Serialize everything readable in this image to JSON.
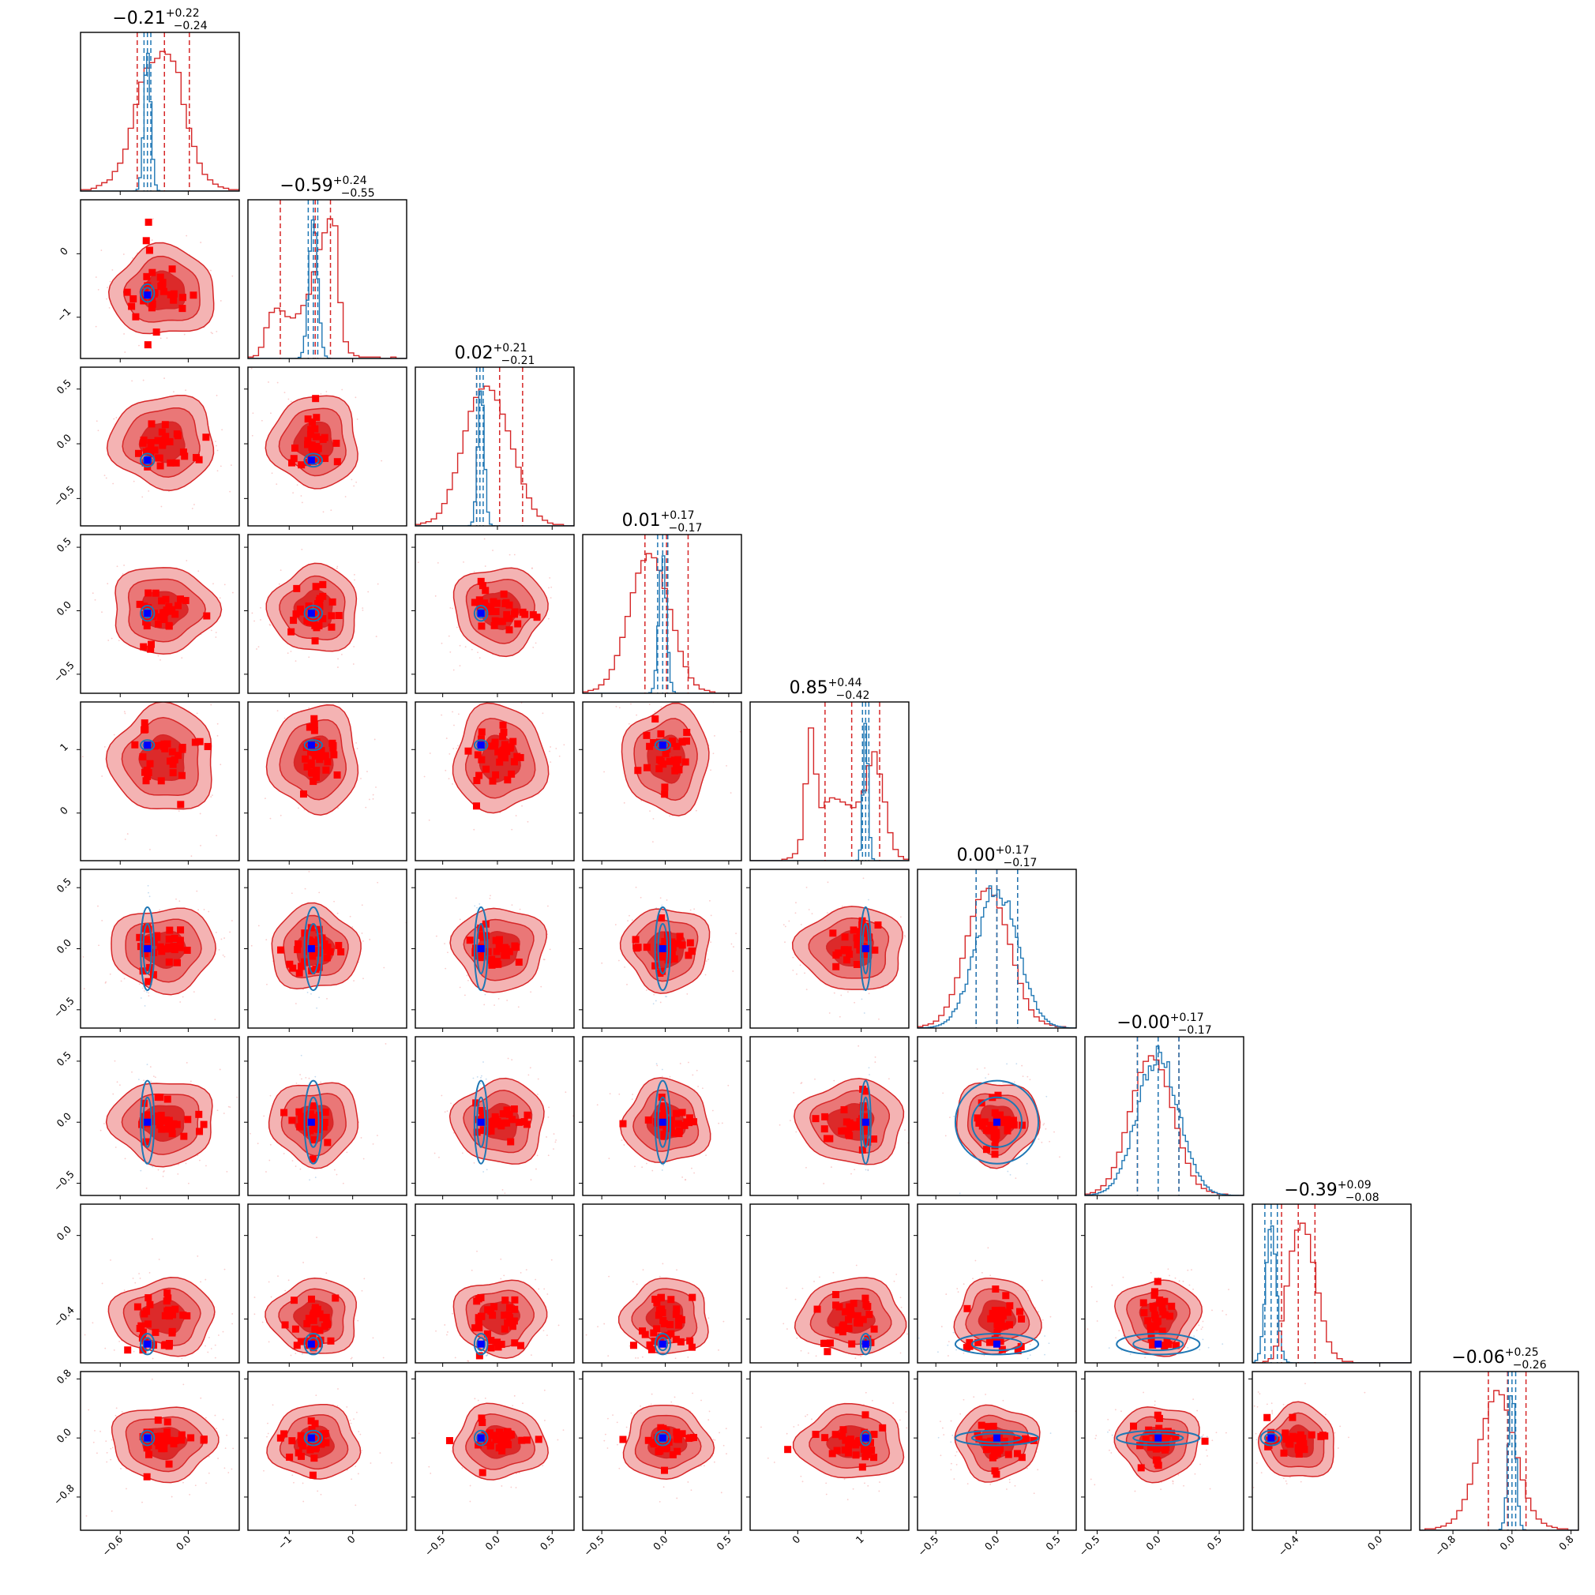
{
  "chart_data": {
    "type": "corner",
    "grid": false,
    "n_params": 9,
    "colors": {
      "posterior_a": "#d62728",
      "posterior_a_point": "#ff0000",
      "posterior_b": "#1f77b4",
      "true_point": "#0000ff"
    },
    "titles": [
      {
        "median": "−0.21",
        "plus": "+0.22",
        "minus": "−0.24"
      },
      {
        "median": "−0.59",
        "plus": "+0.24",
        "minus": "−0.55"
      },
      {
        "median": "0.02",
        "plus": "+0.21",
        "minus": "−0.21"
      },
      {
        "median": "0.01",
        "plus": "+0.17",
        "minus": "−0.17"
      },
      {
        "median": "0.85",
        "plus": "+0.44",
        "minus": "−0.42"
      },
      {
        "median": "0.00",
        "plus": "+0.17",
        "minus": "−0.17"
      },
      {
        "median": "−0.00",
        "plus": "+0.17",
        "minus": "−0.17"
      },
      {
        "median": "−0.39",
        "plus": "+0.09",
        "minus": "−0.08"
      },
      {
        "median": "−0.06",
        "plus": "+0.25",
        "minus": "−0.26"
      }
    ],
    "params": [
      {
        "range": [
          -0.95,
          0.45
        ],
        "ticks": [
          -0.6,
          0.0
        ],
        "tick_labels": [
          "−0.6",
          "0.0"
        ],
        "truth": -0.36,
        "a_mean": -0.22,
        "a_std": 0.23,
        "b_mean": -0.36,
        "b_std": 0.03,
        "a_quantiles": [
          -0.45,
          -0.21,
          0.01
        ],
        "b_quantiles": [
          -0.39,
          -0.36,
          -0.33
        ],
        "a_hist": [
          0.01,
          0.01,
          0.02,
          0.04,
          0.06,
          0.08,
          0.14,
          0.2,
          0.3,
          0.45,
          0.62,
          0.78,
          0.88,
          0.92,
          0.95,
          1.0,
          0.98,
          0.93,
          0.85,
          0.62,
          0.45,
          0.32,
          0.2,
          0.12,
          0.08,
          0.05,
          0.03,
          0.02,
          0.01,
          0.01
        ]
      },
      {
        "range": [
          -1.65,
          0.85
        ],
        "ticks": [
          -1,
          0
        ],
        "tick_labels": [
          "−1",
          "0"
        ],
        "truth": -0.65,
        "a_mean": -0.6,
        "a_std": 0.35,
        "b_mean": -0.62,
        "b_std": 0.07,
        "a_quantiles": [
          -1.14,
          -0.59,
          -0.35
        ],
        "b_quantiles": [
          -0.7,
          -0.62,
          -0.55
        ],
        "a_hist": [
          0.01,
          0.02,
          0.08,
          0.22,
          0.33,
          0.36,
          0.34,
          0.3,
          0.29,
          0.32,
          0.38,
          0.46,
          0.62,
          0.78,
          0.9,
          1.0,
          0.95,
          0.4,
          0.12,
          0.04,
          0.02,
          0.01,
          0.01,
          0.01,
          0.01,
          0.0,
          0.0,
          0.01,
          0.0,
          0.0
        ]
      },
      {
        "range": [
          -0.75,
          0.7
        ],
        "ticks": [
          -0.5,
          0.0,
          0.5
        ],
        "tick_labels": [
          "−0.5",
          "0.0",
          "0.5"
        ],
        "truth": -0.15,
        "a_mean": 0.02,
        "a_std": 0.21,
        "b_mean": -0.15,
        "b_std": 0.03,
        "a_quantiles": [
          -0.19,
          0.02,
          0.23
        ],
        "b_quantiles": [
          -0.19,
          -0.16,
          -0.13
        ],
        "a_hist": [
          0.01,
          0.02,
          0.03,
          0.05,
          0.09,
          0.16,
          0.26,
          0.38,
          0.52,
          0.68,
          0.82,
          0.92,
          0.98,
          1.0,
          0.97,
          0.9,
          0.8,
          0.68,
          0.55,
          0.42,
          0.3,
          0.2,
          0.12,
          0.07,
          0.04,
          0.02,
          0.01,
          0.01,
          0.0,
          0.0
        ]
      },
      {
        "range": [
          -0.65,
          0.6
        ],
        "ticks": [
          -0.5,
          0.0,
          0.5
        ],
        "tick_labels": [
          "−0.5",
          "0.0",
          "0.5"
        ],
        "truth": -0.02,
        "a_mean": 0.01,
        "a_std": 0.17,
        "b_mean": -0.02,
        "b_std": 0.03,
        "a_quantiles": [
          -0.16,
          0.01,
          0.18
        ],
        "b_quantiles": [
          -0.06,
          -0.02,
          0.02
        ],
        "a_hist": [
          0.01,
          0.02,
          0.03,
          0.06,
          0.1,
          0.17,
          0.27,
          0.4,
          0.55,
          0.72,
          0.86,
          0.95,
          1.0,
          0.97,
          0.88,
          0.75,
          0.6,
          0.45,
          0.3,
          0.19,
          0.11,
          0.06,
          0.03,
          0.02,
          0.01,
          0.0,
          0.0,
          0.0,
          0.0,
          0.0
        ]
      },
      {
        "range": [
          -0.75,
          1.75
        ],
        "ticks": [
          0,
          1
        ],
        "tick_labels": [
          "0",
          "1"
        ],
        "truth": 1.07,
        "a_mean": 0.85,
        "a_std": 0.42,
        "b_mean": 1.07,
        "b_std": 0.04,
        "a_quantiles": [
          0.43,
          0.85,
          1.29
        ],
        "b_quantiles": [
          1.02,
          1.07,
          1.12
        ],
        "a_hist": [
          0.0,
          0.0,
          0.0,
          0.0,
          0.0,
          0.0,
          0.01,
          0.02,
          0.05,
          0.15,
          0.55,
          0.95,
          0.62,
          0.38,
          0.42,
          0.45,
          0.44,
          0.42,
          0.4,
          0.38,
          0.42,
          0.5,
          0.68,
          0.78,
          0.62,
          0.42,
          0.2,
          0.08,
          0.03,
          0.01
        ]
      },
      {
        "range": [
          -0.65,
          0.65
        ],
        "ticks": [
          -0.5,
          0.0,
          0.5
        ],
        "tick_labels": [
          "−0.5",
          "0.0",
          "0.5"
        ],
        "truth": 0.0,
        "a_mean": 0.0,
        "a_std": 0.17,
        "b_mean": 0.0,
        "b_std": 0.17,
        "a_quantiles": [
          -0.17,
          0.0,
          0.17
        ],
        "b_quantiles": [
          -0.17,
          0.0,
          0.17
        ],
        "a_hist": [
          0.01,
          0.02,
          0.03,
          0.05,
          0.09,
          0.15,
          0.24,
          0.36,
          0.5,
          0.66,
          0.8,
          0.92,
          0.98,
          1.0,
          0.95,
          0.86,
          0.74,
          0.6,
          0.45,
          0.32,
          0.21,
          0.13,
          0.08,
          0.05,
          0.03,
          0.02,
          0.01,
          0.01,
          0.0,
          0.0
        ]
      },
      {
        "range": [
          -0.6,
          0.7
        ],
        "ticks": [
          -0.5,
          0.0,
          0.5
        ],
        "tick_labels": [
          "−0.5",
          "0.0",
          "0.5"
        ],
        "truth": 0.0,
        "a_mean": 0.0,
        "a_std": 0.17,
        "b_mean": 0.0,
        "b_std": 0.17,
        "a_quantiles": [
          -0.17,
          0.0,
          0.17
        ],
        "b_quantiles": [
          -0.17,
          0.0,
          0.17
        ],
        "a_hist": [
          0.01,
          0.02,
          0.04,
          0.07,
          0.12,
          0.2,
          0.31,
          0.45,
          0.6,
          0.75,
          0.88,
          0.96,
          1.0,
          0.97,
          0.9,
          0.78,
          0.63,
          0.48,
          0.34,
          0.23,
          0.14,
          0.08,
          0.05,
          0.03,
          0.02,
          0.01,
          0.01,
          0.0,
          0.0,
          0.0
        ]
      },
      {
        "range": [
          -0.61,
          0.15
        ],
        "ticks": [
          -0.4,
          0.0
        ],
        "tick_labels": [
          "−0.4",
          "0.0"
        ],
        "truth": -0.52,
        "a_mean": -0.39,
        "a_std": 0.09,
        "b_mean": -0.52,
        "b_std": 0.025,
        "a_quantiles": [
          -0.47,
          -0.39,
          -0.31
        ],
        "b_quantiles": [
          -0.55,
          -0.52,
          -0.49
        ],
        "a_hist": [
          0.0,
          0.0,
          0.01,
          0.03,
          0.12,
          0.3,
          0.55,
          0.8,
          0.95,
          1.0,
          0.92,
          0.72,
          0.5,
          0.3,
          0.15,
          0.07,
          0.03,
          0.01,
          0.01,
          0.0,
          0.0,
          0.0,
          0.0,
          0.0,
          0.0,
          0.0,
          0.0,
          0.0,
          0.0,
          0.0
        ]
      },
      {
        "range": [
          -1.25,
          0.9
        ],
        "ticks": [
          -0.8,
          0.0,
          0.8
        ],
        "tick_labels": [
          "−0.8",
          "0.0",
          "0.8"
        ],
        "truth": 0.0,
        "a_mean": -0.06,
        "a_std": 0.25,
        "b_mean": 0.0,
        "b_std": 0.05,
        "a_quantiles": [
          -0.32,
          -0.06,
          0.19
        ],
        "b_quantiles": [
          -0.05,
          0.0,
          0.05
        ],
        "a_hist": [
          0.0,
          0.01,
          0.01,
          0.02,
          0.03,
          0.05,
          0.08,
          0.14,
          0.22,
          0.33,
          0.48,
          0.65,
          0.8,
          0.92,
          1.0,
          0.97,
          0.86,
          0.7,
          0.52,
          0.36,
          0.23,
          0.14,
          0.08,
          0.05,
          0.03,
          0.02,
          0.01,
          0.01,
          0.0,
          0.0
        ]
      }
    ]
  }
}
